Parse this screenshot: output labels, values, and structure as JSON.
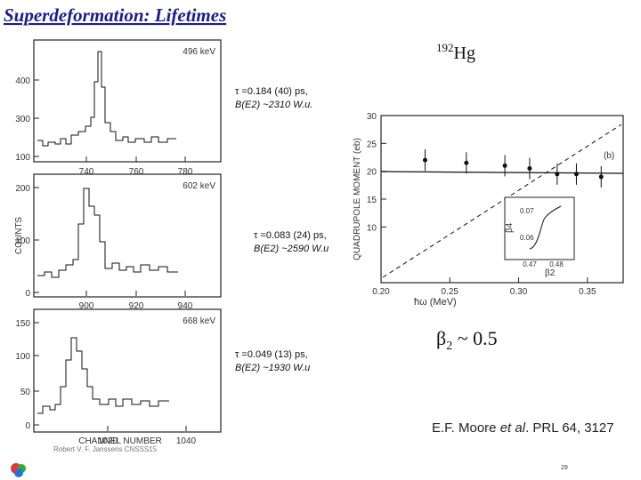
{
  "title": "Superdeformation:  Lifetimes",
  "nucleus": {
    "mass": "192",
    "symbol": "Hg"
  },
  "spectra": {
    "y_label": "COUNTS",
    "x_label": "CHANNEL NUMBER",
    "panels": [
      {
        "energy": "496 keV",
        "yticks": [
          "400",
          "300",
          "100"
        ],
        "xticks": [
          "740",
          "760",
          "780"
        ]
      },
      {
        "energy": "602 keV",
        "yticks": [
          "200",
          "100",
          "0"
        ],
        "xticks": [
          "900",
          "920",
          "940"
        ]
      },
      {
        "energy": "668 keV",
        "yticks": [
          "150",
          "100",
          "50",
          "0"
        ],
        "xticks": [
          "1020",
          "1040"
        ]
      }
    ]
  },
  "annotations": [
    {
      "lifetime": "τ  =0.184 (40) ps,",
      "strength": "B(E2) ~2310  W.u."
    },
    {
      "lifetime": "τ  =0.083 (24) ps,",
      "strength": "B(E2) ~2590 W.u"
    },
    {
      "lifetime": "τ  =0.049 (13) ps,",
      "strength": "B(E2) ~1930 W.u"
    }
  ],
  "moment_plot": {
    "y_label": "QUADRUPOLE MOMENT (eb)",
    "x_label": "ħω (MeV)",
    "panel_label": "(b)",
    "xlim": [
      0.2,
      0.376
    ],
    "ylim": [
      0,
      30
    ],
    "xticks": [
      {
        "value": 0.2,
        "label": "0.20"
      },
      {
        "value": 0.25,
        "label": "0.25"
      },
      {
        "value": 0.3,
        "label": "0.30"
      },
      {
        "value": 0.35,
        "label": "0.35"
      }
    ],
    "yticks": [
      10,
      15,
      20,
      25,
      30
    ],
    "x": [
      0.232,
      0.262,
      0.29,
      0.308,
      0.328,
      0.342,
      0.36
    ],
    "y": [
      22,
      21.5,
      21,
      20.5,
      19.5,
      19.5,
      19
    ],
    "inset": {
      "y_label": "β4",
      "x_label": "β2",
      "yticks": [
        "0.07",
        "0.06"
      ],
      "xticks": [
        "0.47",
        "0.48"
      ]
    }
  },
  "deformation": {
    "symbol": "β",
    "subscript": "2",
    "rest": " ~ 0.5"
  },
  "citation": {
    "authors": "E.F. Moore ",
    "etal": "et al",
    "ref": ". PRL 64, 3127"
  },
  "credit": "Robert V. F. Janssens CNSSS15",
  "page_number": "29"
}
